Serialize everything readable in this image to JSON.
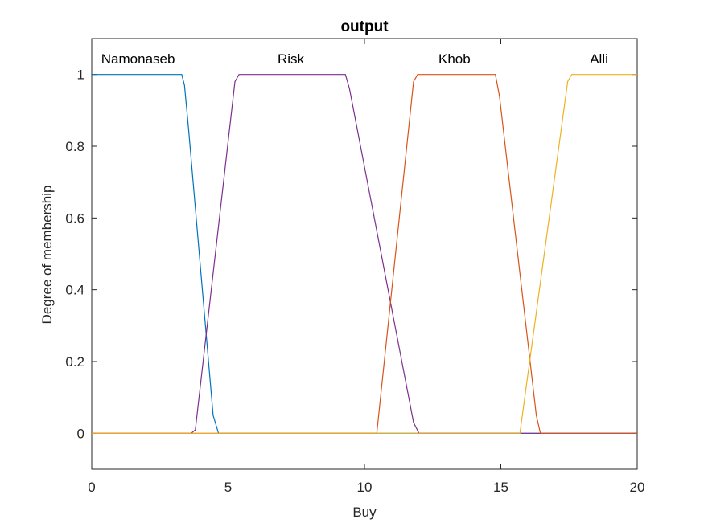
{
  "chart_data": {
    "type": "line",
    "title": "output",
    "xlabel": "Buy",
    "ylabel": "Degree of membership",
    "xlim": [
      0,
      20
    ],
    "ylim": [
      -0.1,
      1.1
    ],
    "xticks": [
      0,
      5,
      10,
      15,
      20
    ],
    "xtick_labels": [
      "0",
      "5",
      "10",
      "15",
      "20"
    ],
    "yticks": [
      0,
      0.2,
      0.4,
      0.6,
      0.8,
      1
    ],
    "ytick_labels": [
      "0",
      "0.2",
      "0.4",
      "0.6",
      "0.8",
      "1"
    ],
    "grid": false,
    "legend": "none",
    "series": [
      {
        "name": "Namonaseb",
        "color": "#0072BD",
        "label_x": 1.7,
        "points": [
          [
            0,
            1
          ],
          [
            3.3,
            1
          ],
          [
            3.4,
            0.97
          ],
          [
            3.55,
            0.85
          ],
          [
            4.45,
            0.05
          ],
          [
            4.65,
            0
          ],
          [
            20,
            0
          ]
        ]
      },
      {
        "name": "Risk",
        "color": "#7E2F8E",
        "label_x": 7.3,
        "points": [
          [
            0,
            0
          ],
          [
            3.65,
            0
          ],
          [
            3.8,
            0.01
          ],
          [
            5.25,
            0.98
          ],
          [
            5.4,
            1
          ],
          [
            9.3,
            1
          ],
          [
            9.45,
            0.96
          ],
          [
            11.8,
            0.03
          ],
          [
            12.0,
            0
          ],
          [
            20,
            0
          ]
        ]
      },
      {
        "name": "Khob",
        "color": "#D95319",
        "label_x": 13.3,
        "points": [
          [
            0,
            0
          ],
          [
            10.45,
            0
          ],
          [
            11.8,
            0.98
          ],
          [
            11.95,
            1
          ],
          [
            14.8,
            1
          ],
          [
            14.95,
            0.94
          ],
          [
            16.3,
            0.05
          ],
          [
            16.45,
            0
          ],
          [
            20,
            0
          ]
        ]
      },
      {
        "name": "Alli",
        "color": "#EDB120",
        "label_x": 18.6,
        "points": [
          [
            0,
            0
          ],
          [
            15.7,
            0
          ],
          [
            17.45,
            0.98
          ],
          [
            17.6,
            1
          ],
          [
            20,
            1
          ]
        ]
      }
    ]
  }
}
